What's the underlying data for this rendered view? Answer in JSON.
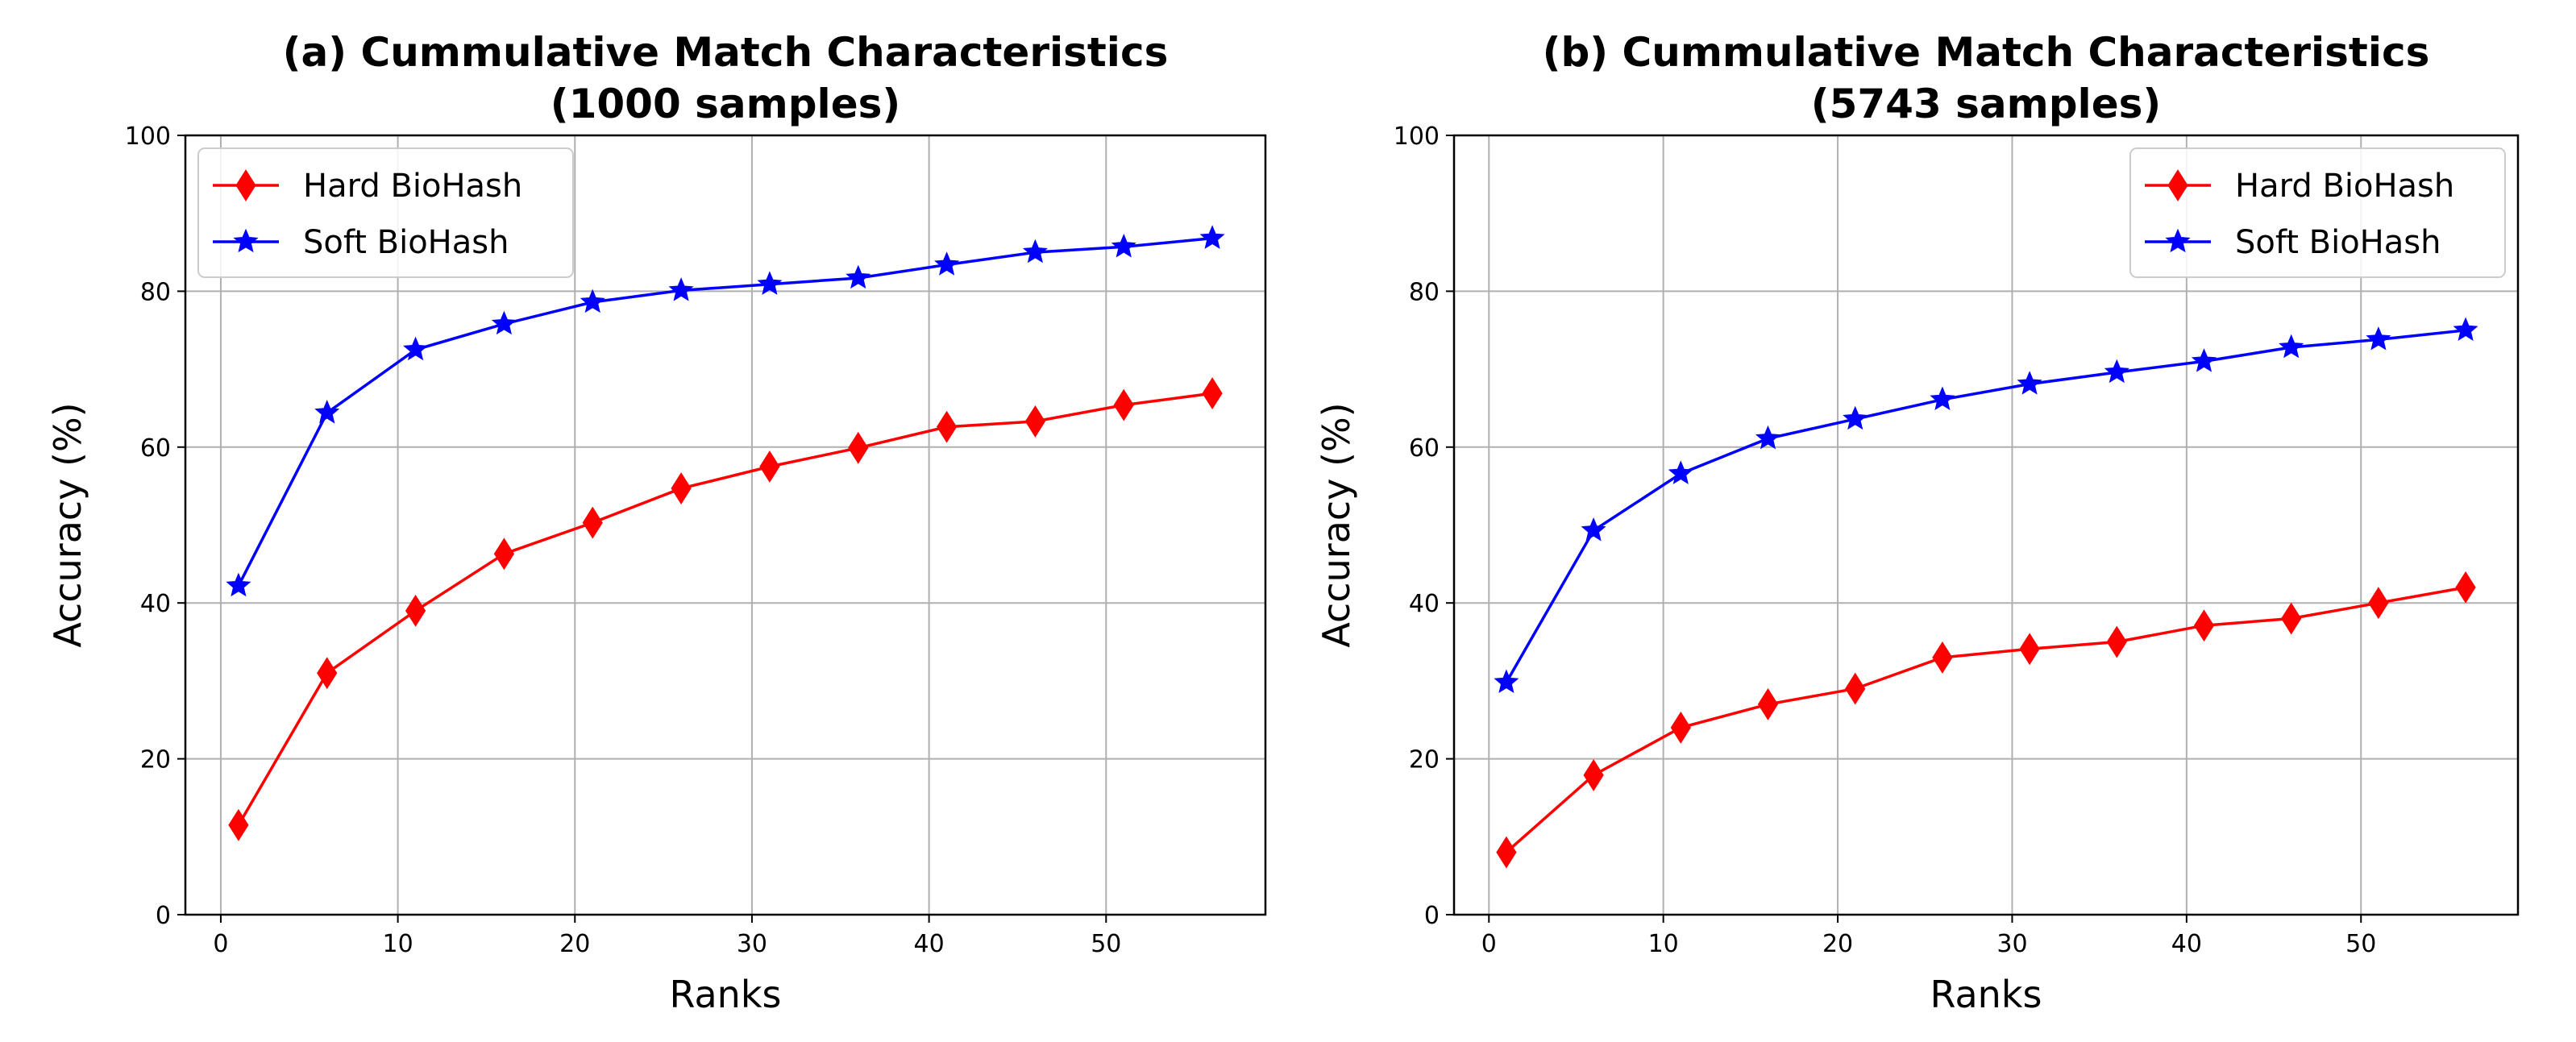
{
  "chart_data": [
    {
      "type": "line",
      "title": [
        "(a) Cummulative Match Characteristics",
        "(1000 samples)"
      ],
      "xlabel": "Ranks",
      "ylabel": "Accuracy (%)",
      "xlim": [
        -2,
        59
      ],
      "ylim": [
        0,
        100
      ],
      "xticks": [
        0,
        10,
        20,
        30,
        40,
        50
      ],
      "yticks": [
        0,
        20,
        40,
        60,
        80,
        100
      ],
      "grid": true,
      "legend_position": "top-left",
      "x": [
        1,
        6,
        11,
        16,
        21,
        26,
        31,
        36,
        41,
        46,
        51,
        56
      ],
      "series": [
        {
          "name": "Hard BioHash",
          "color": "#ff0000",
          "marker": "diamond",
          "values": [
            11.5,
            31,
            39,
            46.3,
            50.3,
            54.7,
            57.5,
            59.9,
            62.6,
            63.3,
            65.4,
            66.9
          ]
        },
        {
          "name": "Soft BioHash",
          "color": "#0000ff",
          "marker": "star",
          "values": [
            42.2,
            64.4,
            72.5,
            75.8,
            78.6,
            80.1,
            80.9,
            81.7,
            83.4,
            85,
            85.7,
            86.8
          ]
        }
      ]
    },
    {
      "type": "line",
      "title": [
        "(b) Cummulative Match Characteristics",
        "(5743 samples)"
      ],
      "xlabel": "Ranks",
      "ylabel": "Accuracy (%)",
      "xlim": [
        -2,
        59
      ],
      "ylim": [
        0,
        100
      ],
      "xticks": [
        0,
        10,
        20,
        30,
        40,
        50
      ],
      "yticks": [
        0,
        20,
        40,
        60,
        80,
        100
      ],
      "grid": true,
      "legend_position": "top-right",
      "x": [
        1,
        6,
        11,
        16,
        21,
        26,
        31,
        36,
        41,
        46,
        51,
        56
      ],
      "series": [
        {
          "name": "Hard BioHash",
          "color": "#ff0000",
          "marker": "diamond",
          "values": [
            8,
            17.9,
            24,
            27,
            29,
            33,
            34.1,
            35,
            37.1,
            38,
            40,
            42
          ]
        },
        {
          "name": "Soft BioHash",
          "color": "#0000ff",
          "marker": "star",
          "values": [
            29.8,
            49.3,
            56.6,
            61.1,
            63.6,
            66.1,
            68.1,
            69.6,
            71,
            72.8,
            73.8,
            75
          ]
        }
      ]
    }
  ]
}
